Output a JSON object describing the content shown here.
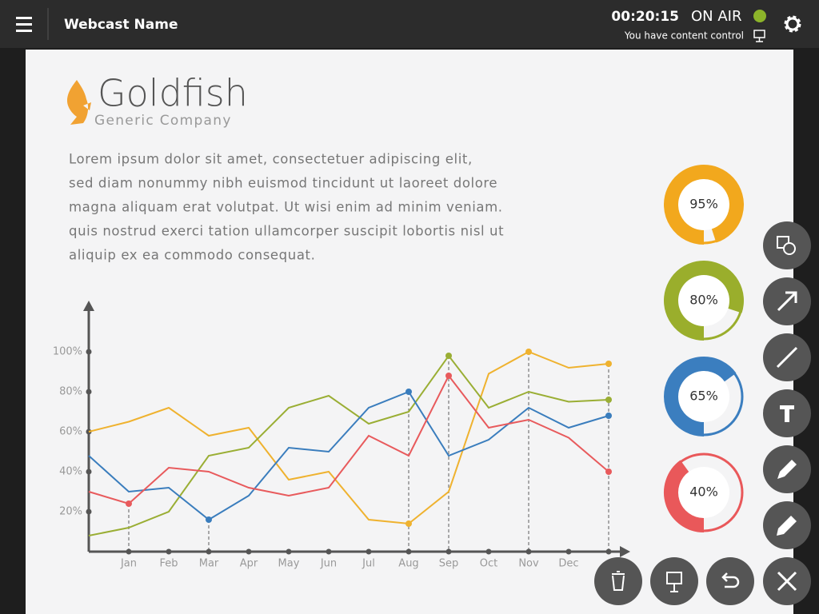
{
  "header": {
    "title": "Webcast Name",
    "timer": "00:20:15",
    "status": "ON AIR",
    "control": "You have content control"
  },
  "slide": {
    "brand": "Goldfish",
    "company": "Generic Company",
    "paragraph": [
      "Lorem ipsum dolor sit amet, consectetuer adipiscing elit,",
      "sed diam nonummy nibh euismod tincidunt ut laoreet dolore",
      "magna aliquam erat volutpat. Ut wisi enim ad minim veniam.",
      "quis nostrud exerci tation ullamcorper suscipit lobortis nisl ut",
      "aliquip ex ea commodo consequat."
    ]
  },
  "chart_data": [
    {
      "type": "line",
      "categories": [
        null,
        "Jan",
        "Feb",
        "Mar",
        "Apr",
        "May",
        "Jun",
        "Jul",
        "Aug",
        "Sep",
        "Oct",
        "Nov",
        "Dec",
        null
      ],
      "series": [
        {
          "color": "#efb22f",
          "values": [
            60,
            65,
            72,
            58,
            62,
            36,
            40,
            16,
            14,
            30,
            89,
            100,
            92,
            94
          ],
          "markers": [
            8,
            11,
            13
          ]
        },
        {
          "color": "#9aae34",
          "values": [
            8,
            12,
            20,
            48,
            52,
            72,
            78,
            64,
            70,
            98,
            72,
            80,
            75,
            76
          ],
          "markers": [
            9,
            13
          ]
        },
        {
          "color": "#3a7dbd",
          "values": [
            48,
            30,
            32,
            16,
            28,
            52,
            50,
            72,
            80,
            48,
            56,
            72,
            62,
            68
          ],
          "markers": [
            3,
            8,
            13
          ]
        },
        {
          "color": "#e85a5c",
          "values": [
            30,
            24,
            42,
            40,
            32,
            28,
            32,
            58,
            48,
            88,
            62,
            66,
            57,
            40
          ],
          "markers": [
            1,
            9,
            13
          ]
        }
      ],
      "ylim": [
        0,
        120
      ],
      "yticks": [
        {
          "value": 20,
          "label": "20%"
        },
        {
          "value": 40,
          "label": "40%"
        },
        {
          "value": 60,
          "label": "60%"
        },
        {
          "value": 80,
          "label": "80%"
        },
        {
          "value": 100,
          "label": "100%"
        }
      ]
    },
    {
      "type": "donut",
      "values": [
        95,
        80,
        65,
        40
      ],
      "value_labels": [
        "95%",
        "80%",
        "65%",
        "40%"
      ],
      "colors": [
        "#f2a81d",
        "#9aae2c",
        "#3b7ebf",
        "#e9585a"
      ]
    }
  ]
}
